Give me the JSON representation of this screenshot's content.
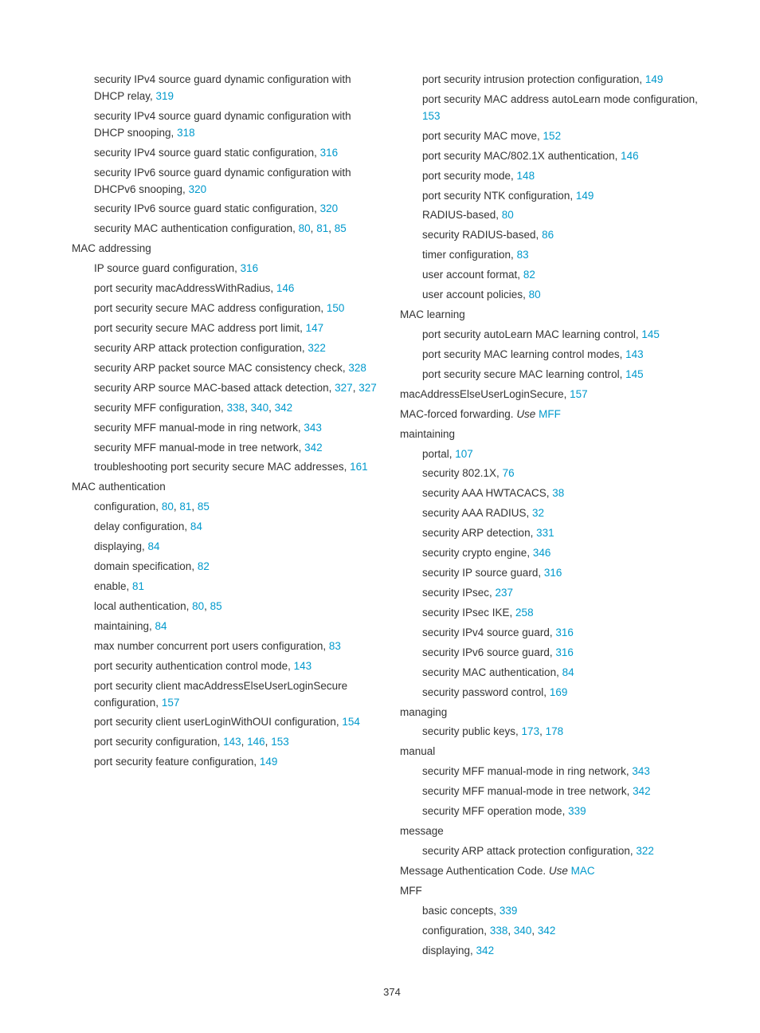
{
  "page_number": "374",
  "link_color": "#0099cc",
  "left": [
    {
      "lvl": 1,
      "parts": [
        {
          "t": "security IPv4 source guard dynamic configuration with DHCP relay, "
        },
        {
          "t": "319",
          "l": true
        }
      ]
    },
    {
      "lvl": 1,
      "parts": [
        {
          "t": "security IPv4 source guard dynamic configuration with DHCP snooping, "
        },
        {
          "t": "318",
          "l": true
        }
      ]
    },
    {
      "lvl": 1,
      "parts": [
        {
          "t": "security IPv4 source guard static configuration, "
        },
        {
          "t": "316",
          "l": true
        }
      ]
    },
    {
      "lvl": 1,
      "parts": [
        {
          "t": "security IPv6 source guard dynamic configuration with DHCPv6 snooping, "
        },
        {
          "t": "320",
          "l": true
        }
      ]
    },
    {
      "lvl": 1,
      "parts": [
        {
          "t": "security IPv6 source guard static configuration, "
        },
        {
          "t": "320",
          "l": true
        }
      ]
    },
    {
      "lvl": 1,
      "parts": [
        {
          "t": "security MAC authentication configuration, "
        },
        {
          "t": "80",
          "l": true
        },
        {
          "t": ", "
        },
        {
          "t": "81",
          "l": true
        },
        {
          "t": ", "
        },
        {
          "t": "85",
          "l": true
        }
      ]
    },
    {
      "lvl": 0,
      "parts": [
        {
          "t": "MAC addressing"
        }
      ]
    },
    {
      "lvl": 1,
      "parts": [
        {
          "t": "IP source guard configuration, "
        },
        {
          "t": "316",
          "l": true
        }
      ]
    },
    {
      "lvl": 1,
      "parts": [
        {
          "t": "port security macAddressWithRadius, "
        },
        {
          "t": "146",
          "l": true
        }
      ]
    },
    {
      "lvl": 1,
      "parts": [
        {
          "t": "port security secure MAC address configuration, "
        },
        {
          "t": "150",
          "l": true
        }
      ]
    },
    {
      "lvl": 1,
      "parts": [
        {
          "t": "port security secure MAC address port limit, "
        },
        {
          "t": "147",
          "l": true
        }
      ]
    },
    {
      "lvl": 1,
      "parts": [
        {
          "t": "security ARP attack protection configuration, "
        },
        {
          "t": "322",
          "l": true
        }
      ]
    },
    {
      "lvl": 1,
      "parts": [
        {
          "t": "security ARP packet source MAC consistency check, "
        },
        {
          "t": "328",
          "l": true
        }
      ]
    },
    {
      "lvl": 1,
      "parts": [
        {
          "t": "security ARP source MAC-based attack detection, "
        },
        {
          "t": "327",
          "l": true
        },
        {
          "t": ", "
        },
        {
          "t": "327",
          "l": true
        }
      ]
    },
    {
      "lvl": 1,
      "parts": [
        {
          "t": "security MFF configuration, "
        },
        {
          "t": "338",
          "l": true
        },
        {
          "t": ", "
        },
        {
          "t": "340",
          "l": true
        },
        {
          "t": ", "
        },
        {
          "t": "342",
          "l": true
        }
      ]
    },
    {
      "lvl": 1,
      "parts": [
        {
          "t": "security MFF manual-mode in ring network, "
        },
        {
          "t": "343",
          "l": true
        }
      ]
    },
    {
      "lvl": 1,
      "parts": [
        {
          "t": "security MFF manual-mode in tree network, "
        },
        {
          "t": "342",
          "l": true
        }
      ]
    },
    {
      "lvl": 1,
      "parts": [
        {
          "t": "troubleshooting port security secure MAC addresses, "
        },
        {
          "t": "161",
          "l": true
        }
      ]
    },
    {
      "lvl": 0,
      "parts": [
        {
          "t": "MAC authentication"
        }
      ]
    },
    {
      "lvl": 1,
      "parts": [
        {
          "t": "configuration, "
        },
        {
          "t": "80",
          "l": true
        },
        {
          "t": ", "
        },
        {
          "t": "81",
          "l": true
        },
        {
          "t": ", "
        },
        {
          "t": "85",
          "l": true
        }
      ]
    },
    {
      "lvl": 1,
      "parts": [
        {
          "t": "delay configuration, "
        },
        {
          "t": "84",
          "l": true
        }
      ]
    },
    {
      "lvl": 1,
      "parts": [
        {
          "t": "displaying, "
        },
        {
          "t": "84",
          "l": true
        }
      ]
    },
    {
      "lvl": 1,
      "parts": [
        {
          "t": "domain specification, "
        },
        {
          "t": "82",
          "l": true
        }
      ]
    },
    {
      "lvl": 1,
      "parts": [
        {
          "t": "enable, "
        },
        {
          "t": "81",
          "l": true
        }
      ]
    },
    {
      "lvl": 1,
      "parts": [
        {
          "t": "local authentication, "
        },
        {
          "t": "80",
          "l": true
        },
        {
          "t": ", "
        },
        {
          "t": "85",
          "l": true
        }
      ]
    },
    {
      "lvl": 1,
      "parts": [
        {
          "t": "maintaining, "
        },
        {
          "t": "84",
          "l": true
        }
      ]
    },
    {
      "lvl": 1,
      "parts": [
        {
          "t": "max number concurrent port users configuration, "
        },
        {
          "t": "83",
          "l": true
        }
      ]
    },
    {
      "lvl": 1,
      "parts": [
        {
          "t": "port security authentication control mode, "
        },
        {
          "t": "143",
          "l": true
        }
      ]
    },
    {
      "lvl": 1,
      "parts": [
        {
          "t": "port security client macAddressElseUserLoginSecure configuration, "
        },
        {
          "t": "157",
          "l": true
        }
      ]
    },
    {
      "lvl": 1,
      "parts": [
        {
          "t": "port security client userLoginWithOUI configuration, "
        },
        {
          "t": "154",
          "l": true
        }
      ]
    },
    {
      "lvl": 1,
      "parts": [
        {
          "t": "port security configuration, "
        },
        {
          "t": "143",
          "l": true
        },
        {
          "t": ", "
        },
        {
          "t": "146",
          "l": true
        },
        {
          "t": ", "
        },
        {
          "t": "153",
          "l": true
        }
      ]
    },
    {
      "lvl": 1,
      "parts": [
        {
          "t": "port security feature configuration, "
        },
        {
          "t": "149",
          "l": true
        }
      ]
    }
  ],
  "right": [
    {
      "lvl": 1,
      "parts": [
        {
          "t": "port security intrusion protection configuration, "
        },
        {
          "t": "149",
          "l": true
        }
      ]
    },
    {
      "lvl": 1,
      "parts": [
        {
          "t": "port security MAC address autoLearn mode configuration, "
        },
        {
          "t": "153",
          "l": true
        }
      ]
    },
    {
      "lvl": 1,
      "parts": [
        {
          "t": "port security MAC move, "
        },
        {
          "t": "152",
          "l": true
        }
      ]
    },
    {
      "lvl": 1,
      "parts": [
        {
          "t": "port security MAC/802.1X authentication, "
        },
        {
          "t": "146",
          "l": true
        }
      ]
    },
    {
      "lvl": 1,
      "parts": [
        {
          "t": "port security mode, "
        },
        {
          "t": "148",
          "l": true
        }
      ]
    },
    {
      "lvl": 1,
      "parts": [
        {
          "t": "port security NTK configuration, "
        },
        {
          "t": "149",
          "l": true
        }
      ]
    },
    {
      "lvl": 1,
      "parts": [
        {
          "t": "RADIUS-based, "
        },
        {
          "t": "80",
          "l": true
        }
      ]
    },
    {
      "lvl": 1,
      "parts": [
        {
          "t": "security RADIUS-based, "
        },
        {
          "t": "86",
          "l": true
        }
      ]
    },
    {
      "lvl": 1,
      "parts": [
        {
          "t": "timer configuration, "
        },
        {
          "t": "83",
          "l": true
        }
      ]
    },
    {
      "lvl": 1,
      "parts": [
        {
          "t": "user account format, "
        },
        {
          "t": "82",
          "l": true
        }
      ]
    },
    {
      "lvl": 1,
      "parts": [
        {
          "t": "user account policies, "
        },
        {
          "t": "80",
          "l": true
        }
      ]
    },
    {
      "lvl": 0,
      "parts": [
        {
          "t": "MAC learning"
        }
      ]
    },
    {
      "lvl": 1,
      "parts": [
        {
          "t": "port security autoLearn MAC learning control, "
        },
        {
          "t": "145",
          "l": true
        }
      ]
    },
    {
      "lvl": 1,
      "parts": [
        {
          "t": "port security MAC learning control modes, "
        },
        {
          "t": "143",
          "l": true
        }
      ]
    },
    {
      "lvl": 1,
      "parts": [
        {
          "t": "port security secure MAC learning control, "
        },
        {
          "t": "145",
          "l": true
        }
      ]
    },
    {
      "lvl": 0,
      "parts": [
        {
          "t": "macAddressElseUserLoginSecure, "
        },
        {
          "t": "157",
          "l": true
        }
      ]
    },
    {
      "lvl": 0,
      "parts": [
        {
          "t": "MAC-forced forwarding. "
        },
        {
          "t": "Use ",
          "i": true
        },
        {
          "t": "MFF",
          "l": true
        }
      ]
    },
    {
      "lvl": 0,
      "parts": [
        {
          "t": "maintaining"
        }
      ]
    },
    {
      "lvl": 1,
      "parts": [
        {
          "t": "portal, "
        },
        {
          "t": "107",
          "l": true
        }
      ]
    },
    {
      "lvl": 1,
      "parts": [
        {
          "t": "security 802.1X, "
        },
        {
          "t": "76",
          "l": true
        }
      ]
    },
    {
      "lvl": 1,
      "parts": [
        {
          "t": "security AAA HWTACACS, "
        },
        {
          "t": "38",
          "l": true
        }
      ]
    },
    {
      "lvl": 1,
      "parts": [
        {
          "t": "security AAA RADIUS, "
        },
        {
          "t": "32",
          "l": true
        }
      ]
    },
    {
      "lvl": 1,
      "parts": [
        {
          "t": "security ARP detection, "
        },
        {
          "t": "331",
          "l": true
        }
      ]
    },
    {
      "lvl": 1,
      "parts": [
        {
          "t": "security crypto engine, "
        },
        {
          "t": "346",
          "l": true
        }
      ]
    },
    {
      "lvl": 1,
      "parts": [
        {
          "t": "security IP source guard, "
        },
        {
          "t": "316",
          "l": true
        }
      ]
    },
    {
      "lvl": 1,
      "parts": [
        {
          "t": "security IPsec, "
        },
        {
          "t": "237",
          "l": true
        }
      ]
    },
    {
      "lvl": 1,
      "parts": [
        {
          "t": "security IPsec IKE, "
        },
        {
          "t": "258",
          "l": true
        }
      ]
    },
    {
      "lvl": 1,
      "parts": [
        {
          "t": "security IPv4 source guard, "
        },
        {
          "t": "316",
          "l": true
        }
      ]
    },
    {
      "lvl": 1,
      "parts": [
        {
          "t": "security IPv6 source guard, "
        },
        {
          "t": "316",
          "l": true
        }
      ]
    },
    {
      "lvl": 1,
      "parts": [
        {
          "t": "security MAC authentication, "
        },
        {
          "t": "84",
          "l": true
        }
      ]
    },
    {
      "lvl": 1,
      "parts": [
        {
          "t": "security password control, "
        },
        {
          "t": "169",
          "l": true
        }
      ]
    },
    {
      "lvl": 0,
      "parts": [
        {
          "t": "managing"
        }
      ]
    },
    {
      "lvl": 1,
      "parts": [
        {
          "t": "security public keys, "
        },
        {
          "t": "173",
          "l": true
        },
        {
          "t": ", "
        },
        {
          "t": "178",
          "l": true
        }
      ]
    },
    {
      "lvl": 0,
      "parts": [
        {
          "t": "manual"
        }
      ]
    },
    {
      "lvl": 1,
      "parts": [
        {
          "t": "security MFF manual-mode in ring network, "
        },
        {
          "t": "343",
          "l": true
        }
      ]
    },
    {
      "lvl": 1,
      "parts": [
        {
          "t": "security MFF manual-mode in tree network, "
        },
        {
          "t": "342",
          "l": true
        }
      ]
    },
    {
      "lvl": 1,
      "parts": [
        {
          "t": "security MFF operation mode, "
        },
        {
          "t": "339",
          "l": true
        }
      ]
    },
    {
      "lvl": 0,
      "parts": [
        {
          "t": "message"
        }
      ]
    },
    {
      "lvl": 1,
      "parts": [
        {
          "t": "security ARP attack protection configuration, "
        },
        {
          "t": "322",
          "l": true
        }
      ]
    },
    {
      "lvl": 0,
      "parts": [
        {
          "t": "Message Authentication Code. "
        },
        {
          "t": "Use ",
          "i": true
        },
        {
          "t": "MAC",
          "l": true
        }
      ]
    },
    {
      "lvl": 0,
      "parts": [
        {
          "t": "MFF"
        }
      ]
    },
    {
      "lvl": 1,
      "parts": [
        {
          "t": "basic concepts, "
        },
        {
          "t": "339",
          "l": true
        }
      ]
    },
    {
      "lvl": 1,
      "parts": [
        {
          "t": "configuration, "
        },
        {
          "t": "338",
          "l": true
        },
        {
          "t": ", "
        },
        {
          "t": "340",
          "l": true
        },
        {
          "t": ", "
        },
        {
          "t": "342",
          "l": true
        }
      ]
    },
    {
      "lvl": 1,
      "parts": [
        {
          "t": "displaying, "
        },
        {
          "t": "342",
          "l": true
        }
      ]
    }
  ]
}
